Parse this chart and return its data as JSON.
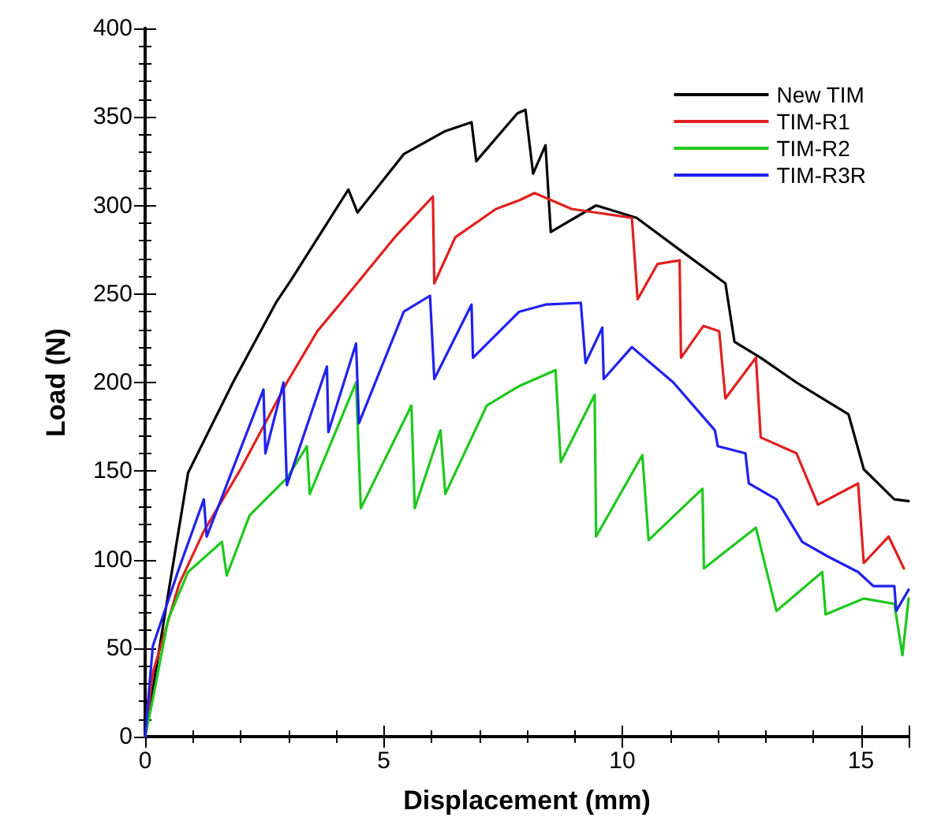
{
  "chart_data": {
    "type": "line",
    "xlabel": "Displacement (mm)",
    "ylabel": "Load (N)",
    "xlim": [
      0,
      16
    ],
    "xticks": [
      0,
      5,
      10,
      15
    ],
    "ylim": [
      0,
      400
    ],
    "yticks": [
      0,
      50,
      100,
      150,
      200,
      250,
      300,
      350,
      400
    ],
    "grid": false,
    "legend": "top right",
    "marker": "none",
    "line_style": "solid",
    "series": [
      {
        "name": "New TIM",
        "color": "#000000",
        "x": [
          0,
          0.48,
          0.9,
          1.84,
          2.74,
          3.06,
          4.26,
          4.45,
          5.42,
          6.29,
          6.84,
          6.94,
          7.8,
          7.97,
          8.13,
          8.39,
          8.5,
          9.45,
          10.3,
          11.2,
          12.16,
          12.35,
          12.9,
          13.65,
          14.74,
          15.06,
          15.7,
          16
        ],
        "values": [
          0,
          80,
          149,
          200,
          245,
          258,
          309,
          296,
          329,
          342,
          347,
          325,
          352,
          354,
          318,
          334,
          285,
          300,
          293,
          275,
          256,
          223,
          214,
          200,
          182,
          151,
          134,
          133
        ]
      },
      {
        "name": "TIM-R1",
        "color": "#e0201e",
        "x": [
          0,
          0.16,
          0.71,
          1.23,
          2.0,
          2.97,
          3.61,
          4.35,
          5.23,
          6.03,
          6.06,
          6.5,
          7.35,
          7.85,
          8.16,
          8.94,
          10.2,
          10.32,
          10.74,
          11.2,
          11.23,
          11.7,
          12.03,
          12.16,
          12.8,
          12.9,
          13.65,
          14.1,
          14.94,
          15.06,
          15.58,
          15.9
        ],
        "values": [
          0,
          36,
          86,
          116,
          151,
          200,
          229,
          253,
          282,
          305,
          256,
          282,
          298,
          303,
          307,
          298,
          293,
          247,
          267,
          269,
          214,
          232,
          229,
          191,
          214,
          169,
          160,
          131,
          143,
          98,
          113,
          95
        ]
      },
      {
        "name": "TIM-R2",
        "color": "#1ec81e",
        "x": [
          0,
          0.16,
          0.48,
          0.9,
          1.61,
          1.71,
          2.19,
          2.97,
          3.39,
          3.45,
          4.42,
          4.52,
          5.58,
          5.65,
          6.19,
          6.29,
          7.16,
          7.84,
          8.6,
          8.71,
          9.42,
          9.45,
          10.42,
          10.55,
          11.68,
          11.71,
          12.8,
          13.23,
          14.19,
          14.26,
          15.06,
          15.7,
          15.87,
          16
        ],
        "values": [
          0,
          21,
          66,
          93,
          110,
          91,
          125,
          146,
          164,
          137,
          200,
          129,
          187,
          129,
          173,
          137,
          187,
          198,
          207,
          155,
          193,
          113,
          159,
          111,
          140,
          95,
          118,
          71,
          93,
          69,
          78,
          75,
          46,
          78
        ]
      },
      {
        "name": "TIM-R3R",
        "color": "#2020f0",
        "x": [
          0,
          0.16,
          0.71,
          1.23,
          1.29,
          2.48,
          2.52,
          2.9,
          2.97,
          3.81,
          3.84,
          4.42,
          4.48,
          5.42,
          5.97,
          6.06,
          6.84,
          6.87,
          7.84,
          8.39,
          9.13,
          9.23,
          9.58,
          9.61,
          10.2,
          11.07,
          11.94,
          12.0,
          12.58,
          12.65,
          13.23,
          13.77,
          14.29,
          14.94,
          15.26,
          15.7,
          15.74,
          16
        ],
        "values": [
          0,
          51,
          95,
          134,
          113,
          196,
          160,
          200,
          142,
          209,
          172,
          222,
          177,
          240,
          249,
          202,
          244,
          214,
          240,
          244,
          245,
          211,
          231,
          202,
          220,
          200,
          173,
          164,
          160,
          143,
          134,
          110,
          102,
          93,
          85,
          85,
          71,
          83
        ]
      }
    ]
  }
}
